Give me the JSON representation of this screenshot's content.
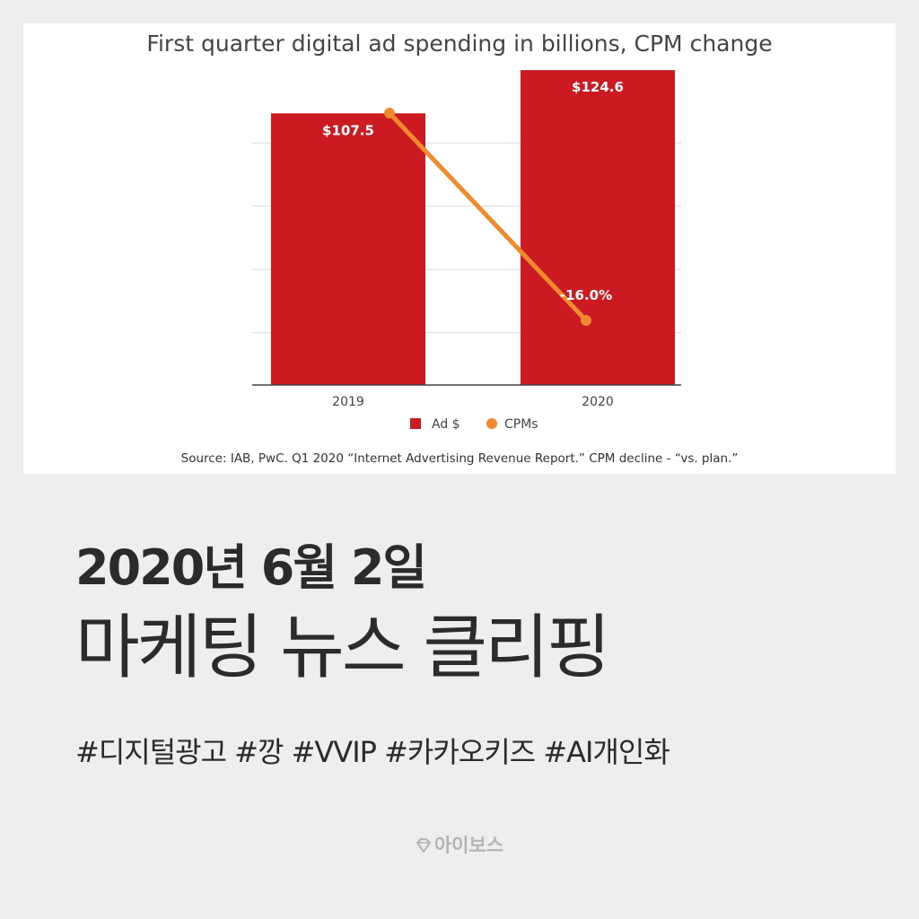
{
  "chart_data": {
    "type": "bar",
    "title": "First quarter digital ad spending in billions, CPM change",
    "categories": [
      "2019",
      "2020"
    ],
    "series": [
      {
        "name": "Ad $",
        "kind": "bar",
        "values": [
          107.5,
          124.6
        ],
        "labels": [
          "$107.5",
          "$124.6"
        ],
        "color": "#cc1a22"
      },
      {
        "name": "CPMs",
        "kind": "line",
        "values": [
          0,
          -16.0
        ],
        "labels": [
          "",
          "-16.0%"
        ],
        "color": "#ef8a2e"
      }
    ],
    "ylim": [
      0,
      125
    ],
    "grid": true,
    "legend": "bottom",
    "source": "Source: IAB, PwC. Q1 2020 “Internet Advertising Revenue Report.” CPM decline - “vs. plan.”"
  },
  "headline": {
    "date": "2020년 6월 2일",
    "title": "마케팅 뉴스 클리핑"
  },
  "hashtags": "#디지털광고 #깡 #VVIP #카카오키즈 #AI개인화",
  "brand": {
    "name": "아이보스",
    "icon": "diamond-logo-icon"
  }
}
